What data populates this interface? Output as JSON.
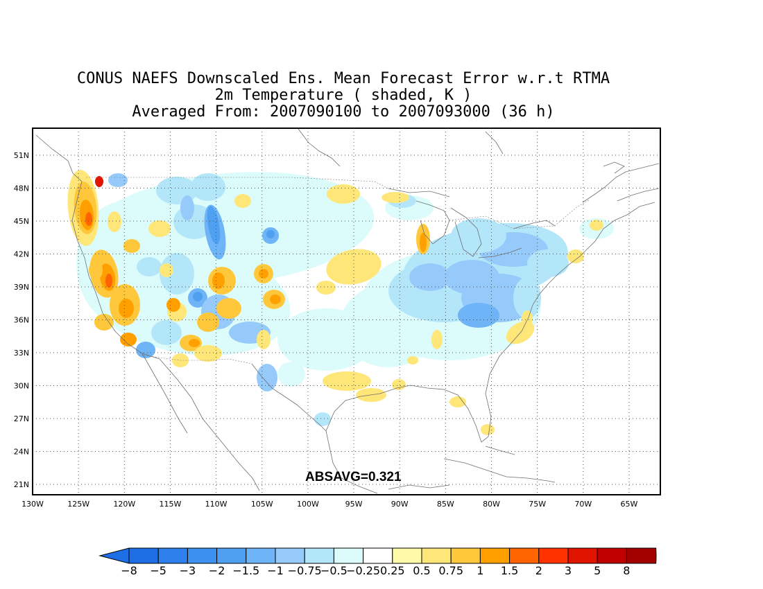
{
  "title": {
    "line1": "CONUS NAEFS Downscaled Ens. Mean Forecast Error w.r.t RTMA",
    "line2": "2m Temperature ( shaded, K )",
    "line3": "Averaged From: 2007090100 to 2007093000 (36 h)"
  },
  "lon_labels": [
    "130W",
    "125W",
    "120W",
    "115W",
    "110W",
    "105W",
    "100W",
    "95W",
    "90W",
    "85W",
    "80W",
    "75W",
    "70W",
    "65W"
  ],
  "lat_labels": [
    "51N",
    "48N",
    "45N",
    "42N",
    "39N",
    "36N",
    "33N",
    "30N",
    "27N",
    "24N",
    "21N"
  ],
  "annotation": "ABSAVG=0.321",
  "colorbar": {
    "labels": [
      "−8",
      "−5",
      "−3",
      "−2",
      "−1.5",
      "−1",
      "−0.75",
      "−0.5",
      "−0.25",
      "0.25",
      "0.5",
      "0.75",
      "1",
      "1.5",
      "2",
      "3",
      "5",
      "8"
    ],
    "colors": [
      "#1e6ee6",
      "#2e80ec",
      "#3c91f0",
      "#50a0f2",
      "#6eb4f6",
      "#96cafa",
      "#b4e6fa",
      "#dcfcfc",
      "#ffffff",
      "#fffaaa",
      "#ffe678",
      "#ffc83c",
      "#ffa000",
      "#ff6400",
      "#ff3200",
      "#e11400",
      "#c00000",
      "#a50000"
    ]
  }
}
